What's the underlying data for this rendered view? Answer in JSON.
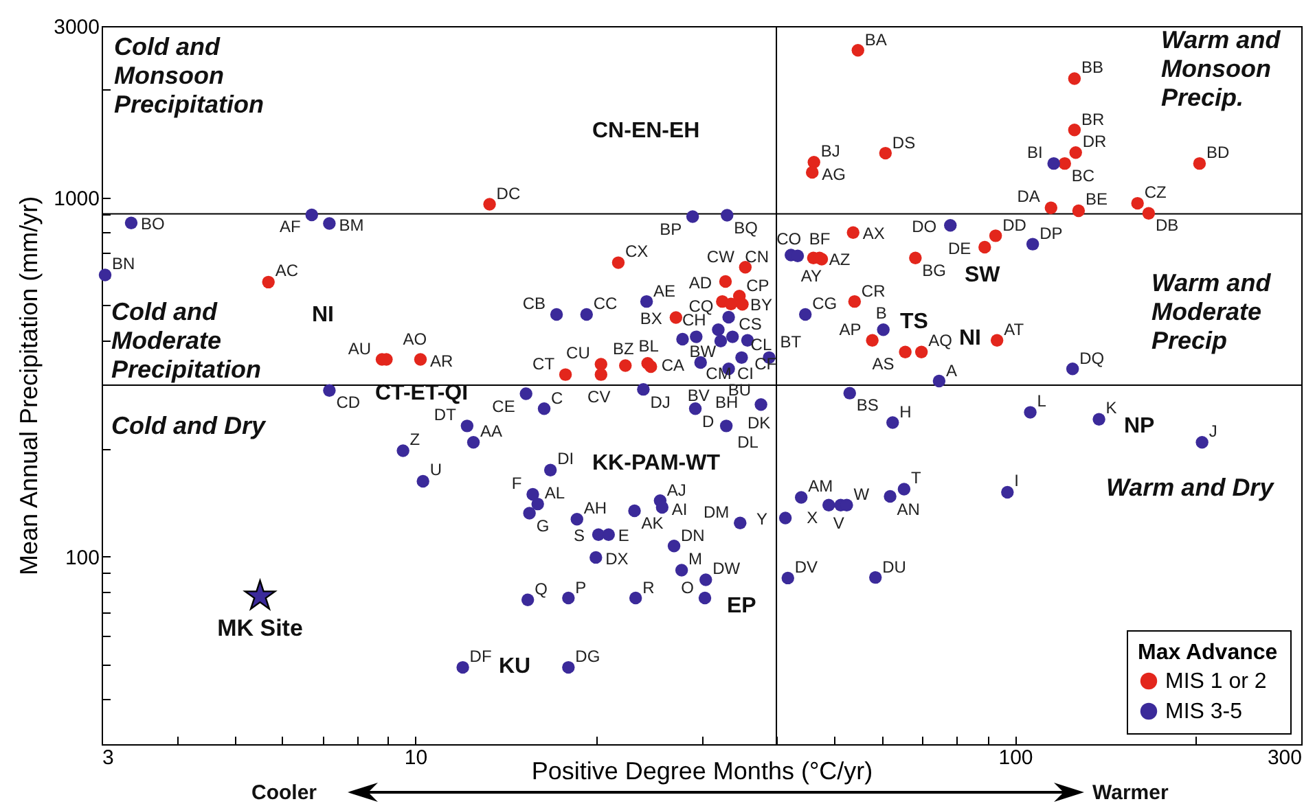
{
  "chart_data": {
    "type": "scatter",
    "xlabel": "Positive Degree Months (°C/yr)",
    "ylabel": "Mean Annual Precipitation (mm/yr)",
    "legend_title": "Max Advance",
    "legend": "bottom right",
    "log": "xy",
    "grid": false,
    "marker": "circle",
    "xlim": [
      3,
      300
    ],
    "ylim": [
      30,
      3000
    ],
    "xticks": [
      3,
      {
        "value": 4,
        "label": null
      },
      {
        "value": 5,
        "label": null
      },
      {
        "value": 6,
        "label": null
      },
      {
        "value": 7,
        "label": null
      },
      {
        "value": 8,
        "label": null
      },
      {
        "value": 9,
        "label": null
      },
      10,
      {
        "value": 20,
        "label": null
      },
      {
        "value": 30,
        "label": null
      },
      {
        "value": 40,
        "label": null
      },
      {
        "value": 50,
        "label": null
      },
      {
        "value": 60,
        "label": null
      },
      {
        "value": 70,
        "label": null
      },
      {
        "value": 80,
        "label": null
      },
      {
        "value": 90,
        "label": null
      },
      100,
      {
        "value": 200,
        "label": null
      },
      300
    ],
    "yticks": [
      {
        "value": 40,
        "label": null
      },
      {
        "value": 50,
        "label": null
      },
      {
        "value": 60,
        "label": null
      },
      {
        "value": 70,
        "label": null
      },
      {
        "value": 80,
        "label": null
      },
      {
        "value": 90,
        "label": null
      },
      100,
      {
        "value": 200,
        "label": null
      },
      {
        "value": 300,
        "label": null
      },
      {
        "value": 400,
        "label": null
      },
      {
        "value": 500,
        "label": null
      },
      {
        "value": 600,
        "label": null
      },
      {
        "value": 700,
        "label": null
      },
      {
        "value": 800,
        "label": null
      },
      {
        "value": 900,
        "label": null
      },
      1000,
      {
        "value": 2000,
        "label": null
      },
      3000
    ],
    "ref_lines": [
      {
        "axis": "x",
        "value": 40,
        "color": "#000000"
      },
      {
        "axis": "y",
        "value": 900,
        "color": "#000000"
      },
      {
        "axis": "y",
        "value": 300,
        "color": "#000000"
      }
    ],
    "series": [
      {
        "name": "MIS 1 or 2",
        "color": "#e3261c",
        "x": [
          13.3,
          21.8,
          5.69,
          8.8,
          8.95,
          10.2,
          17.8,
          20.4,
          20.4,
          22.4,
          24.4,
          24.7,
          54.7,
          125.6,
          125.6,
          126.2,
          121,
          203,
          114.8,
          127.6,
          160,
          167,
          46.2,
          45.9,
          60.8,
          53.7,
          89,
          92.8,
          35.5,
          46.1,
          47.2,
          47.6,
          68.2,
          32.9,
          34.7,
          35.1,
          32.5,
          33.6,
          27.2,
          54,
          57.8,
          65.6,
          69.8,
          93.3
        ],
        "values": [
          957,
          658,
          581,
          354,
          354,
          354,
          321,
          343,
          321,
          340,
          345,
          338,
          2569,
          2143,
          1542,
          1333,
          1243,
          1243,
          935,
          918,
          963,
          903,
          1253,
          1174,
          1328,
          798,
          727,
          782,
          639,
          678,
          678,
          673,
          678,
          583,
          531,
          504,
          513,
          505,
          463,
          513,
          400,
          371,
          371,
          400
        ],
        "value_labels": [
          "DC",
          "CX",
          "AC",
          "AU",
          "AO",
          "AR",
          "CT",
          "CU",
          "CV",
          "BZ",
          "CA",
          "BL",
          "BA",
          "BB",
          "BR",
          "DR",
          "BC",
          "BD",
          "DA",
          "BE",
          "CZ",
          "DB",
          "BJ",
          "AG",
          "DS",
          "AX",
          "DE",
          "DD",
          "CW",
          "AY",
          "AZ",
          "BF",
          "BG",
          "AD",
          "CP",
          "CQ",
          "CS",
          "BY",
          "BX",
          "CR",
          "AP",
          "AS",
          "AQ",
          "AT"
        ]
      },
      {
        "name": "MIS 3-5",
        "color": "#3b2a9a",
        "x": [
          3.36,
          3.04,
          6.72,
          7.19,
          24.3,
          17.2,
          19.3,
          7.19,
          15.3,
          24,
          116,
          29,
          33.1,
          78,
          107,
          42.3,
          43.4,
          44.7,
          27.9,
          29.4,
          32,
          33.3,
          33.8,
          32.3,
          35.8,
          38.9,
          35,
          29.9,
          33.3,
          60.3,
          74.7,
          53,
          124.7,
          29.3,
          37.7,
          33,
          62.5,
          106,
          138,
          205,
          97.1,
          44,
          48.9,
          51.2,
          52.4,
          61.9,
          65.3,
          25.6,
          25.8,
          34.8,
          41.4,
          27,
          27.8,
          30.5,
          30.4,
          41.8,
          58.5,
          16.4,
          12.2,
          12.5,
          9.54,
          10.3,
          16.8,
          15.7,
          16,
          15.5,
          18.6,
          20.2,
          21,
          23.2,
          20,
          15.4,
          18,
          23.3,
          12,
          18
        ],
        "values": [
          849,
          608,
          894,
          846,
          513,
          472,
          472,
          290,
          284,
          292,
          1243,
          884,
          892,
          836,
          741,
          691,
          687,
          472,
          403,
          409,
          428,
          464,
          409,
          398,
          400,
          358,
          358,
          347,
          333,
          428,
          308,
          285,
          333,
          258,
          265,
          231,
          236,
          252,
          241,
          208,
          151,
          146,
          139,
          139,
          139,
          147,
          154,
          143,
          137,
          124,
          128,
          107,
          91.6,
          86.1,
          76.6,
          87.1,
          87.4,
          258,
          231,
          208,
          197,
          162,
          174,
          149,
          140,
          132,
          127,
          115,
          115,
          134,
          99.4,
          75.7,
          76.6,
          76.6,
          49.1,
          49.1
        ],
        "value_labels": [
          "BO",
          "BN",
          "AF",
          "BM",
          "AE",
          "CB",
          "CC",
          "CD",
          "CE",
          "DJ",
          "BI",
          "BP",
          "BQ",
          "DO",
          "DP",
          "CO",
          "CN",
          "CG",
          "BW",
          "CH",
          null,
          "CL",
          "CF",
          "CM",
          "CI",
          "BT",
          "BU",
          "BV",
          "BH",
          "B",
          "A",
          "BS",
          "DQ",
          "D",
          "DK",
          "DL",
          "H",
          "L",
          "K",
          "J",
          "I",
          "AM",
          "X",
          "V",
          "W",
          "AN",
          "T",
          "AJ",
          "AI",
          "DM",
          "Y",
          "DN",
          "M",
          "DW",
          "O",
          "DV",
          "DU",
          "C",
          "DT",
          "AA",
          "Z",
          "U",
          "DI",
          "F",
          "AL",
          "G",
          "AH",
          "S",
          "E",
          "AK",
          "DX",
          "Q",
          "P",
          "R",
          "DF",
          "DG"
        ]
      },
      {
        "name": "MK Site",
        "color": "#3b2a9a",
        "marker": "star",
        "x": [
          5.51
        ],
        "values": [
          77.5
        ]
      }
    ],
    "annotations": [
      "Cold and\nMonsoon\nPrecipitation",
      "Warm and\nMonsoon\nPrecip.",
      "Cold and\nModerate\nPrecipitation",
      "Warm and\nModerate\nPrecip",
      "Cold and Dry",
      "Warm and Dry",
      "CN-EN-EH",
      "NI",
      "CT-ET-QI",
      "KK-PAM-WT",
      "TS",
      "NI",
      "SW",
      "NP",
      "EP",
      "KU",
      "Cooler",
      "Warmer"
    ]
  }
}
